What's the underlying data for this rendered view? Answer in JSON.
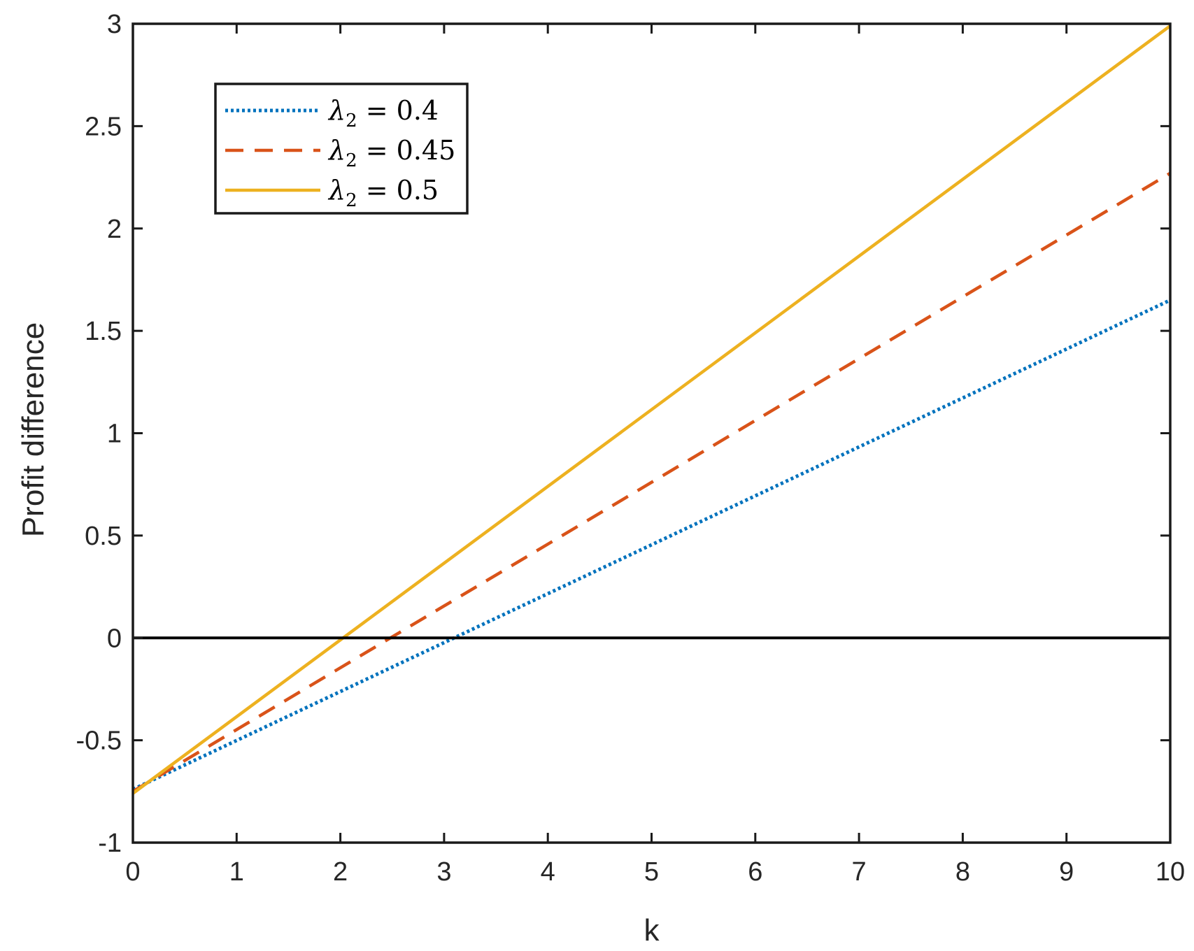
{
  "chart_data": {
    "type": "line",
    "xlabel": "k",
    "ylabel": "Profit difference",
    "xlim": [
      0,
      10
    ],
    "ylim": [
      -1,
      3
    ],
    "xticks": [
      "0",
      "1",
      "2",
      "3",
      "4",
      "5",
      "6",
      "7",
      "8",
      "9",
      "10"
    ],
    "yticks": [
      "-1",
      "-0.5",
      "0",
      "0.5",
      "1",
      "1.5",
      "2",
      "2.5",
      "3"
    ],
    "grid": false,
    "legend_position": "top-left",
    "reference_line": {
      "y": 0,
      "color": "#000000"
    },
    "series": [
      {
        "name": "λ2 = 0.4",
        "label_symbol": "λ",
        "label_sub": "2",
        "label_rest": " = 0.4",
        "style": "dotted",
        "color": "#0072BD",
        "x": [
          0,
          10
        ],
        "y": [
          -0.74,
          1.65
        ]
      },
      {
        "name": "λ2 = 0.45",
        "label_symbol": "λ",
        "label_sub": "2",
        "label_rest": " = 0.45",
        "style": "dashed",
        "color": "#D95319",
        "x": [
          0,
          10
        ],
        "y": [
          -0.75,
          2.27
        ]
      },
      {
        "name": "λ2 = 0.5",
        "label_symbol": "λ",
        "label_sub": "2",
        "label_rest": " = 0.5",
        "style": "solid",
        "color": "#EDB120",
        "x": [
          0,
          10
        ],
        "y": [
          -0.76,
          2.99
        ]
      }
    ]
  }
}
